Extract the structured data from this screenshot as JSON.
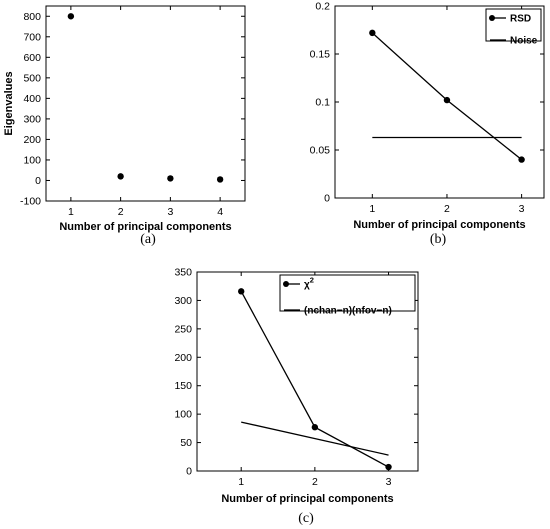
{
  "chart_data": [
    {
      "type": "scatter",
      "sublabel": "(a)",
      "xlabel": "Number of principal components",
      "ylabel": "Eigenvalues",
      "xlim": [
        0.5,
        4.5
      ],
      "ylim": [
        -100,
        850
      ],
      "xticks": [
        1,
        2,
        3,
        4
      ],
      "yticks": [
        -100,
        0,
        100,
        200,
        300,
        400,
        500,
        600,
        700,
        800
      ],
      "x": [
        1,
        2,
        3,
        4
      ],
      "y": [
        800,
        20,
        10,
        5
      ],
      "grid": false
    },
    {
      "type": "line",
      "sublabel": "(b)",
      "xlabel": "Number of principal components",
      "ylabel": "",
      "xlim": [
        0.5,
        3.3
      ],
      "ylim": [
        0,
        0.2
      ],
      "xticks": [
        1,
        2,
        3
      ],
      "yticks": [
        "0",
        "0.05",
        "0.1",
        "0.15",
        "0.2"
      ],
      "legend_position": "top-right",
      "series": [
        {
          "name": "RSD",
          "x": [
            1,
            2,
            3
          ],
          "y": [
            0.172,
            0.102,
            0.04
          ],
          "markers": true
        },
        {
          "name": "Noise",
          "x": [
            1,
            3
          ],
          "y": [
            0.063,
            0.063
          ],
          "markers": false
        }
      ],
      "grid": false
    },
    {
      "type": "line",
      "sublabel": "(c)",
      "xlabel": "Number of principal components",
      "ylabel": "",
      "xlim": [
        0.4,
        3.4
      ],
      "ylim": [
        0,
        350
      ],
      "xticks": [
        1,
        2,
        3
      ],
      "yticks": [
        0,
        50,
        100,
        150,
        200,
        250,
        300,
        350
      ],
      "legend_position": "top-right",
      "series": [
        {
          "name": "χ",
          "sup": "2",
          "x": [
            1,
            2,
            3
          ],
          "y": [
            316,
            77,
            7
          ],
          "markers": true
        },
        {
          "name": "(nchan−n)(nfov−n)",
          "x": [
            1,
            3
          ],
          "y": [
            86,
            28
          ],
          "markers": false
        }
      ],
      "grid": false
    }
  ]
}
